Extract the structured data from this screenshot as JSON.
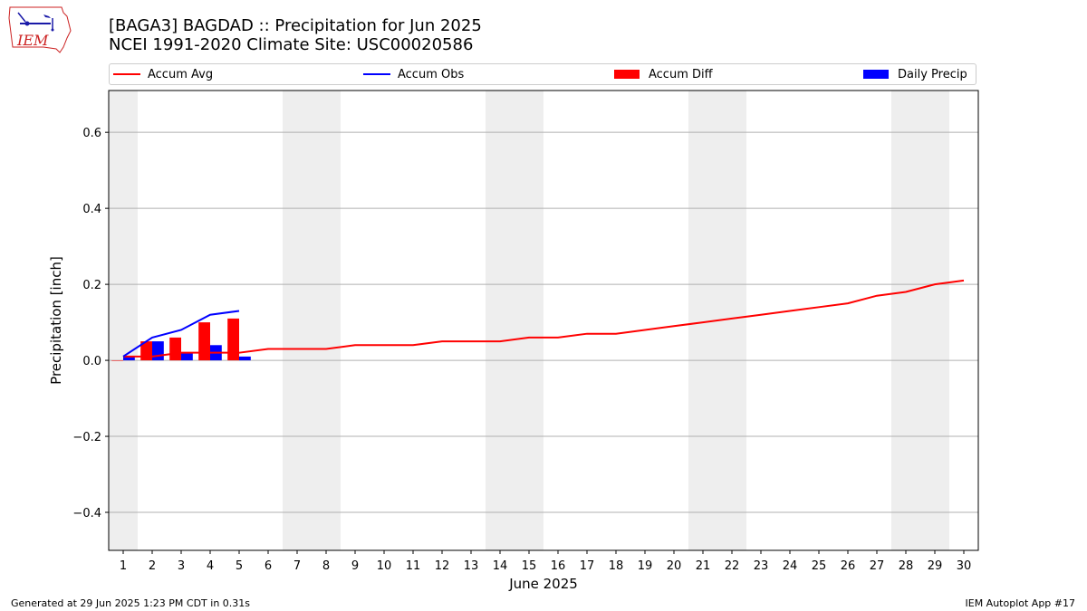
{
  "header": {
    "title_line1": "[BAGA3] BAGDAD :: Precipitation for Jun 2025",
    "title_line2": "NCEI 1991-2020 Climate Site: USC00020586"
  },
  "logo": {
    "text": "IEM"
  },
  "legend": {
    "items": [
      {
        "label": "Accum Avg",
        "color": "#ff0000",
        "kind": "line"
      },
      {
        "label": "Accum Obs",
        "color": "#0000ff",
        "kind": "line"
      },
      {
        "label": "Accum Diff",
        "color": "#ff0000",
        "kind": "box"
      },
      {
        "label": "Daily Precip",
        "color": "#0000ff",
        "kind": "box"
      }
    ],
    "placement": "top"
  },
  "footer": {
    "left": "Generated at 29 Jun 2025 1:23 PM CDT in 0.31s",
    "right": "IEM Autoplot App #17"
  },
  "chart_data": {
    "type": "bar",
    "xlabel": "June 2025",
    "ylabel": "Precipitation [inch]",
    "xlim": [
      0.5,
      30.5
    ],
    "ylim": [
      -0.5,
      0.71
    ],
    "yticks": [
      -0.4,
      -0.2,
      0.0,
      0.2,
      0.4,
      0.6
    ],
    "ytick_labels": [
      "−0.4",
      "−0.2",
      "0.0",
      "0.2",
      "0.4",
      "0.6"
    ],
    "xticks": [
      1,
      2,
      3,
      4,
      5,
      6,
      7,
      8,
      9,
      10,
      11,
      12,
      13,
      14,
      15,
      16,
      17,
      18,
      19,
      20,
      21,
      22,
      23,
      24,
      25,
      26,
      27,
      28,
      29,
      30
    ],
    "grid": "horizontal",
    "weekend_shading": [
      [
        0.5,
        1.5
      ],
      [
        6.5,
        8.5
      ],
      [
        13.5,
        15.5
      ],
      [
        20.5,
        22.5
      ],
      [
        27.5,
        29.5
      ]
    ],
    "shade_color": "#eeeeee",
    "series": [
      {
        "name": "Accum Avg",
        "kind": "line",
        "color": "#ff0000",
        "x": [
          1,
          2,
          3,
          4,
          5,
          6,
          7,
          8,
          9,
          10,
          11,
          12,
          13,
          14,
          15,
          16,
          17,
          18,
          19,
          20,
          21,
          22,
          23,
          24,
          25,
          26,
          27,
          28,
          29,
          30
        ],
        "values": [
          0.01,
          0.01,
          0.02,
          0.02,
          0.02,
          0.03,
          0.03,
          0.03,
          0.04,
          0.04,
          0.04,
          0.05,
          0.05,
          0.05,
          0.06,
          0.06,
          0.07,
          0.07,
          0.08,
          0.09,
          0.1,
          0.11,
          0.12,
          0.13,
          0.14,
          0.15,
          0.17,
          0.18,
          0.2,
          0.21
        ]
      },
      {
        "name": "Accum Obs",
        "kind": "line",
        "color": "#0000ff",
        "x": [
          1,
          2,
          3,
          4,
          5
        ],
        "values": [
          0.01,
          0.06,
          0.08,
          0.12,
          0.13
        ]
      },
      {
        "name": "Accum Diff",
        "kind": "bar",
        "color": "#ff0000",
        "offset": "left",
        "x": [
          1,
          2,
          3,
          4,
          5
        ],
        "values": [
          0.0,
          0.05,
          0.06,
          0.1,
          0.11
        ]
      },
      {
        "name": "Daily Precip",
        "kind": "bar",
        "color": "#0000ff",
        "offset": "right",
        "x": [
          1,
          2,
          3,
          4,
          5
        ],
        "values": [
          0.01,
          0.05,
          0.02,
          0.04,
          0.01
        ]
      }
    ]
  }
}
